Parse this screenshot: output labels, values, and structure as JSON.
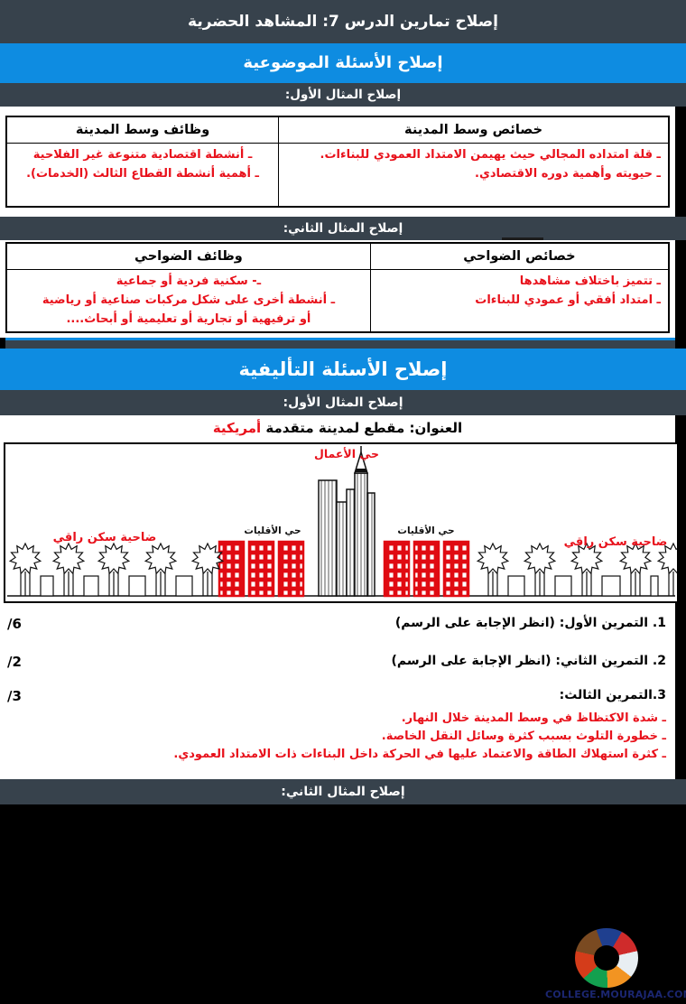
{
  "colors": {
    "dark_bar": "#37424C",
    "blue_banner": "#0E8CE1",
    "red_text": "#E8111B",
    "site_navy": "#1b2670"
  },
  "page": {
    "header_title": "إصلاح تمارين الدرس 7: المشاهد الحضرية",
    "objective_section_title": "إصلاح الأسئلة الموضوعية",
    "synthesis_section_title": "إصلاح الأسئلة التأليفية",
    "first_example_bar": "إصلاح المثال الأول:",
    "second_example_bar": "إصلاح المثال الثاني:"
  },
  "table1": {
    "header_right": "خصائص وسط المدينة",
    "header_left": "وظائف وسط المدينة",
    "right_lines": [
      "ـ قلة امتداده المجالي حيث يهيمن الامتداد العمودي للبناءات.",
      "ـ حيويته وأهمية دوره الاقتصادي."
    ],
    "left_lines": [
      "ـ أنشطة اقتصادية متنوعة غير الفلاحية",
      "ـ أهمية أنشطة القطاع الثالث (الخدمات)."
    ]
  },
  "table2": {
    "header_right": "خصائص الضواحي",
    "header_left": "وظائف الضواحي",
    "right_lines": [
      "ـ  تتميز باختلاف مشاهدها",
      "ـ  امتداد أفقي أو عمودي للبناءات"
    ],
    "left_lines": [
      "ـ- سكنية فردية أو جماعية",
      "ـ أنشطة أخرى على شكل مركبات صناعية أو رياضية",
      "أو ترفيهية أو تجارية أو تعليمية أو أبحاث...."
    ]
  },
  "synthesis": {
    "title_black": "العنوان: مقطع لمدينة متقدمة",
    "title_red": "أمريكية",
    "diagram_labels": {
      "business_district": "حي الأعمال",
      "minorities_left": "حي الأقليات",
      "minorities_right": "حي الأقليات",
      "suburb_left": "ضاحية سكن راقي",
      "suburb_right": "ضاحية سكن راقي"
    },
    "exercises": [
      {
        "text": "1. التمرين الأول: (انظر الإجابة على الرسم)",
        "score": "/6"
      },
      {
        "text": "2. التمرين الثاني: (انظر الإجابة على الرسم)",
        "score": "/2"
      },
      {
        "text": "3.التمرين الثالث:",
        "score": "/3"
      }
    ],
    "exercise3_answers": [
      "ـ شدة الاكتظاظ في وسط المدينة خلال النهار.",
      "ـ خطورة التلوث بسبب كثرة وسائل النقل الخاصة.",
      "ـ كثرة استهلاك الطاقة والاعتماد عليها في الحركة داخل البناءات ذات الامتداد العمودي."
    ]
  },
  "footer": {
    "website": "COLLEGE.MOURAJAA.COM"
  }
}
